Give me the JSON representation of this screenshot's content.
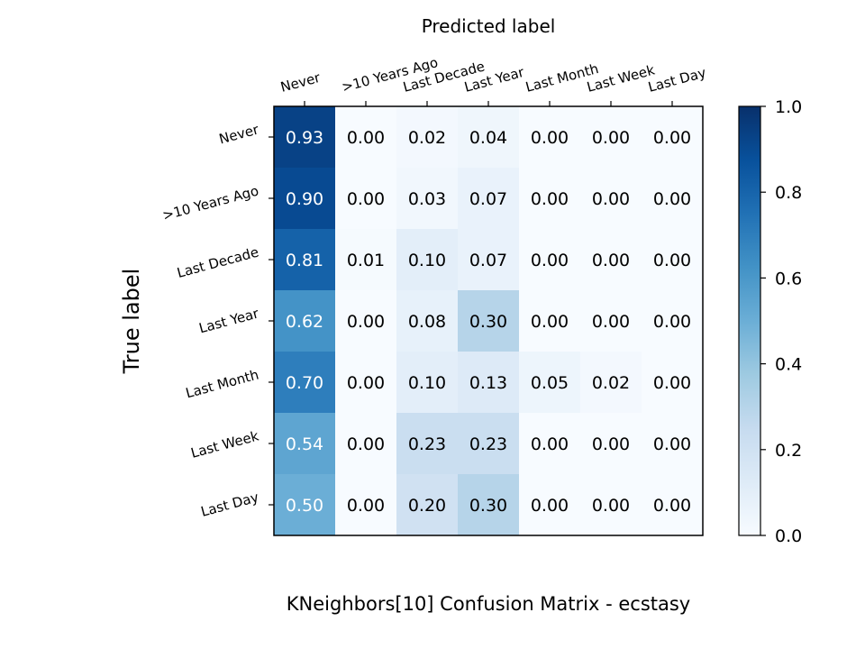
{
  "chart_data": {
    "type": "heatmap",
    "title": "KNeighbors[10]  Confusion Matrix - ecstasy",
    "xlabel": "Predicted label",
    "ylabel": "True label",
    "x_categories": [
      "Never",
      ">10 Years Ago",
      "Last Decade",
      "Last Year",
      "Last Month",
      "Last Week",
      "Last Day"
    ],
    "y_categories": [
      "Never",
      ">10 Years Ago",
      "Last Decade",
      "Last Year",
      "Last Month",
      "Last Week",
      "Last Day"
    ],
    "values": [
      [
        0.93,
        0.0,
        0.02,
        0.04,
        0.0,
        0.0,
        0.0
      ],
      [
        0.9,
        0.0,
        0.03,
        0.07,
        0.0,
        0.0,
        0.0
      ],
      [
        0.81,
        0.01,
        0.1,
        0.07,
        0.0,
        0.0,
        0.0
      ],
      [
        0.62,
        0.0,
        0.08,
        0.3,
        0.0,
        0.0,
        0.0
      ],
      [
        0.7,
        0.0,
        0.1,
        0.13,
        0.05,
        0.02,
        0.0
      ],
      [
        0.54,
        0.0,
        0.23,
        0.23,
        0.0,
        0.0,
        0.0
      ],
      [
        0.5,
        0.0,
        0.2,
        0.3,
        0.0,
        0.0,
        0.0
      ]
    ],
    "value_format": "2 decimals",
    "colormap": "Blues",
    "colorbar": {
      "range": [
        0.0,
        1.0
      ],
      "ticks": [
        "0.0",
        "0.2",
        "0.4",
        "0.6",
        "0.8",
        "1.0"
      ]
    },
    "x_tick_position": "top",
    "grid": false
  }
}
